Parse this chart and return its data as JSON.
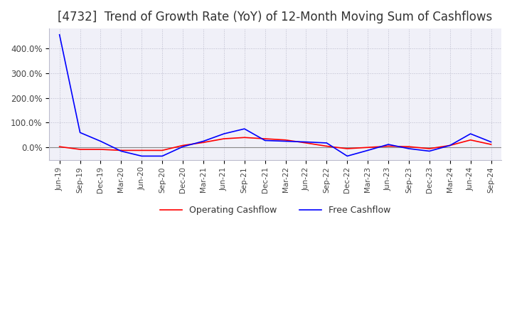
{
  "title": "[4732]  Trend of Growth Rate (YoY) of 12-Month Moving Sum of Cashflows",
  "title_fontsize": 12,
  "ylim": [
    -50,
    480
  ],
  "yticks": [
    0,
    100,
    200,
    300,
    400
  ],
  "yticklabels": [
    "0.0%",
    "100.0%",
    "200.0%",
    "300.0%",
    "400.0%"
  ],
  "legend_entries": [
    "Operating Cashflow",
    "Free Cashflow"
  ],
  "line_colors": [
    "#ff0000",
    "#0000ff"
  ],
  "background_color": "#ffffff",
  "plot_bg_color": "#f0f0f8",
  "grid_color": "#bbbbcc",
  "x_labels": [
    "Jun-19",
    "Sep-19",
    "Dec-19",
    "Mar-20",
    "Jun-20",
    "Sep-20",
    "Dec-20",
    "Mar-21",
    "Jun-21",
    "Sep-21",
    "Dec-21",
    "Mar-22",
    "Jun-22",
    "Sep-22",
    "Dec-22",
    "Mar-23",
    "Jun-23",
    "Sep-23",
    "Dec-23",
    "Mar-24",
    "Jun-24",
    "Sep-24"
  ],
  "operating_cashflow": [
    3,
    -8,
    -8,
    -12,
    -12,
    -12,
    8,
    20,
    35,
    40,
    35,
    30,
    18,
    5,
    -5,
    0,
    5,
    3,
    -5,
    8,
    30,
    12
  ],
  "free_cashflow": [
    455,
    60,
    25,
    -15,
    -35,
    -35,
    3,
    25,
    55,
    75,
    28,
    25,
    22,
    18,
    -35,
    -12,
    12,
    -5,
    -15,
    8,
    55,
    22
  ]
}
